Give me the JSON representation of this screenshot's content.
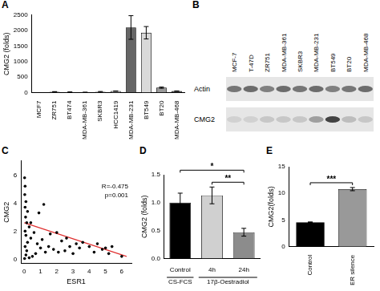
{
  "chart_data": [
    {
      "panel": "A",
      "type": "bar",
      "categories": [
        "MCF7",
        "ZR751",
        "BT474",
        "MDA-MB-361",
        "SKBR3",
        "HCC1419",
        "MDA-MB-231",
        "BT549",
        "BT20",
        "MDA-MB-468"
      ],
      "values": [
        1,
        28,
        15,
        10,
        25,
        50,
        2100,
        1930,
        160,
        50
      ],
      "errors": [
        0.5,
        5,
        8,
        4,
        12,
        5,
        380,
        200,
        20,
        5
      ],
      "colors": [
        "#4d4d4d",
        "#8c8c8c",
        "#5a5a5a",
        "#6e6e6e",
        "#a0a0a0",
        "#c8c8c8",
        "#666666",
        "#d9d9d9",
        "#9a9a9a",
        "#3a3a3a"
      ],
      "y_label": "CMG2 (folds)",
      "ylim": [
        0,
        2500
      ],
      "yticks": [
        0,
        500,
        1000,
        1500,
        2000,
        2500
      ],
      "grid": false
    },
    {
      "panel": "B",
      "type": "blot",
      "categories": [
        "MCF-7",
        "T-47D",
        "ZR751",
        "MDA-MB-361",
        "SKBR3",
        "MDA-MB-231",
        "BT549",
        "BT20",
        "MDA-MB-468"
      ],
      "series": [
        {
          "name": "Actin",
          "values": [
            0.55,
            0.6,
            0.5,
            0.6,
            0.55,
            0.6,
            0.5,
            0.55,
            0.6
          ]
        },
        {
          "name": "CMG2",
          "values": [
            0.1,
            0.1,
            0.15,
            0.15,
            0.15,
            0.35,
            0.8,
            0.2,
            0.15
          ]
        }
      ]
    },
    {
      "panel": "C",
      "type": "scatter",
      "x": [
        0.02,
        0.05,
        0.03,
        0.1,
        0.05,
        0.2,
        0.08,
        0.15,
        0.3,
        0.05,
        0.1,
        0.4,
        0.2,
        0.05,
        0.15,
        0.1,
        0.3,
        0.5,
        0.7,
        0.9,
        0.8,
        1.0,
        1.1,
        1.2,
        1.3,
        1.5,
        1.6,
        1.8,
        2.0,
        2.1,
        2.3,
        2.5,
        2.6,
        2.8,
        3.0,
        3.2,
        3.4,
        3.6,
        4.0,
        4.3,
        4.5,
        4.8,
        5.0,
        5.2,
        5.4,
        6.0,
        0.02,
        0.4,
        0.6
      ],
      "values": [
        5.8,
        5.2,
        4.6,
        4.1,
        3.7,
        3.4,
        3.0,
        2.6,
        2.3,
        2.0,
        1.7,
        1.5,
        1.2,
        0.9,
        0.6,
        0.3,
        0.1,
        0.2,
        0.4,
        3.3,
        1.1,
        0.8,
        1.4,
        3.9,
        0.5,
        0.9,
        1.8,
        0.7,
        1.9,
        0.5,
        1.3,
        0.6,
        1.5,
        0.9,
        0.4,
        1.1,
        0.8,
        1.2,
        0.9,
        0.5,
        1.1,
        0.7,
        0.8,
        0.4,
        0.9,
        0.2,
        0.05,
        2.6,
        1.9
      ],
      "color": "#000000",
      "marker": "circle",
      "fit": {
        "x": [
          0,
          6.3
        ],
        "values": [
          2.6,
          0.2
        ],
        "color": "#e03030"
      },
      "annotations": [
        "R=-0.475",
        "p=0.001"
      ],
      "x_label": "ESR1",
      "y_label": "CMG2",
      "xlim": [
        -0.2,
        6.6
      ],
      "xticks": [
        0,
        1,
        2,
        3,
        4,
        5,
        6
      ],
      "ylim": [
        -0.3,
        7
      ],
      "yticks": [
        0,
        2,
        4,
        6
      ],
      "grid": false
    },
    {
      "panel": "D",
      "type": "bar",
      "categories": [
        "Control",
        "4h",
        "24h"
      ],
      "values": [
        1.0,
        1.13,
        0.47
      ],
      "errors": [
        0.17,
        0.15,
        0.07
      ],
      "colors": [
        "#000000",
        "#d0d0d0",
        "#8c8c8c"
      ],
      "groups": [
        {
          "label": "CS-FCS",
          "from": 0,
          "to": 0
        },
        {
          "label": "17β-Oestradiol",
          "from": 1,
          "to": 2
        }
      ],
      "significance": [
        {
          "from": 0,
          "to": 2,
          "label": "*"
        },
        {
          "from": 1,
          "to": 2,
          "label": "**"
        }
      ],
      "y_label": "CMG2 (folds)",
      "ylim": [
        0,
        1.5
      ],
      "yticks": [
        {
          "value": 0,
          "label": "0.0"
        },
        0.5,
        {
          "value": 1,
          "label": "1.0"
        },
        1.5
      ],
      "grid": false
    },
    {
      "panel": "E",
      "type": "bar",
      "categories": [
        "Control",
        "ER silence"
      ],
      "values": [
        4.6,
        10.8
      ],
      "errors": [
        0.05,
        0.3
      ],
      "colors": [
        "#000000",
        "#999999"
      ],
      "significance": [
        {
          "from": 0,
          "to": 1,
          "label": "***"
        }
      ],
      "y_label": "CMG2(folds)",
      "ylim": [
        0,
        15
      ],
      "yticks": [
        0,
        5,
        10,
        15
      ],
      "grid": false
    }
  ]
}
